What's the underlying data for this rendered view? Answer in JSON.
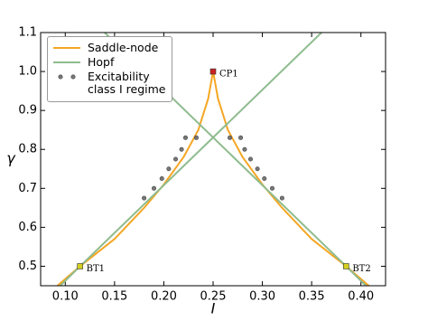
{
  "chart_data": {
    "type": "line",
    "xlabel": "I",
    "ylabel": "γ",
    "xlim": [
      0.075,
      0.425
    ],
    "ylim": [
      0.45,
      1.1
    ],
    "xticks": [
      {
        "value": 0.1,
        "label": "0.10"
      },
      {
        "value": 0.15,
        "label": "0.15"
      },
      {
        "value": 0.2,
        "label": "0.20"
      },
      {
        "value": 0.25,
        "label": "0.25"
      },
      {
        "value": 0.3,
        "label": "0.30"
      },
      {
        "value": 0.35,
        "label": "0.35"
      },
      {
        "value": 0.4,
        "label": "0.40"
      }
    ],
    "yticks": [
      0.5,
      0.6,
      0.7,
      0.8,
      0.9,
      {
        "value": 1,
        "label": "1.0"
      },
      1.1
    ],
    "legend": "upper left",
    "series": [
      {
        "name": "Saddle-node",
        "color": "#f5a623",
        "style": "line",
        "x": [
          0.092,
          0.115,
          0.15,
          0.18,
          0.2,
          0.22,
          0.235,
          0.245,
          0.25,
          0.255,
          0.265,
          0.28,
          0.3,
          0.32,
          0.35,
          0.385,
          0.408
        ],
        "values": [
          0.45,
          0.5,
          0.57,
          0.65,
          0.71,
          0.78,
          0.85,
          0.93,
          1.0,
          0.93,
          0.85,
          0.78,
          0.71,
          0.65,
          0.57,
          0.5,
          0.45
        ]
      },
      {
        "name": "Hopf",
        "color": "#8fbc8f",
        "style": "line",
        "x": [
          0.095,
          0.115,
          0.36,
          null,
          0.14,
          0.385,
          0.405
        ],
        "values": [
          0.45,
          0.5,
          1.1,
          null,
          1.1,
          0.5,
          0.45
        ]
      },
      {
        "name": "Excitability\nclass I regime",
        "color": "#777777",
        "style": "markers",
        "x": [
          0.18,
          0.19,
          0.198,
          0.205,
          0.212,
          0.218,
          0.222,
          0.233,
          0.267,
          0.278,
          0.282,
          0.288,
          0.295,
          0.302,
          0.31,
          0.32
        ],
        "values": [
          0.675,
          0.7,
          0.725,
          0.75,
          0.775,
          0.8,
          0.83,
          0.83,
          0.83,
          0.83,
          0.8,
          0.775,
          0.75,
          0.725,
          0.7,
          0.675
        ]
      }
    ],
    "annotations": [
      {
        "text": "CP1",
        "x": 0.25,
        "y": 1.0,
        "color": "#cc2222"
      },
      {
        "text": "BT1",
        "x": 0.115,
        "y": 0.5,
        "color": "#d4d020"
      },
      {
        "text": "BT2",
        "x": 0.385,
        "y": 0.5,
        "color": "#d4d020"
      }
    ]
  }
}
